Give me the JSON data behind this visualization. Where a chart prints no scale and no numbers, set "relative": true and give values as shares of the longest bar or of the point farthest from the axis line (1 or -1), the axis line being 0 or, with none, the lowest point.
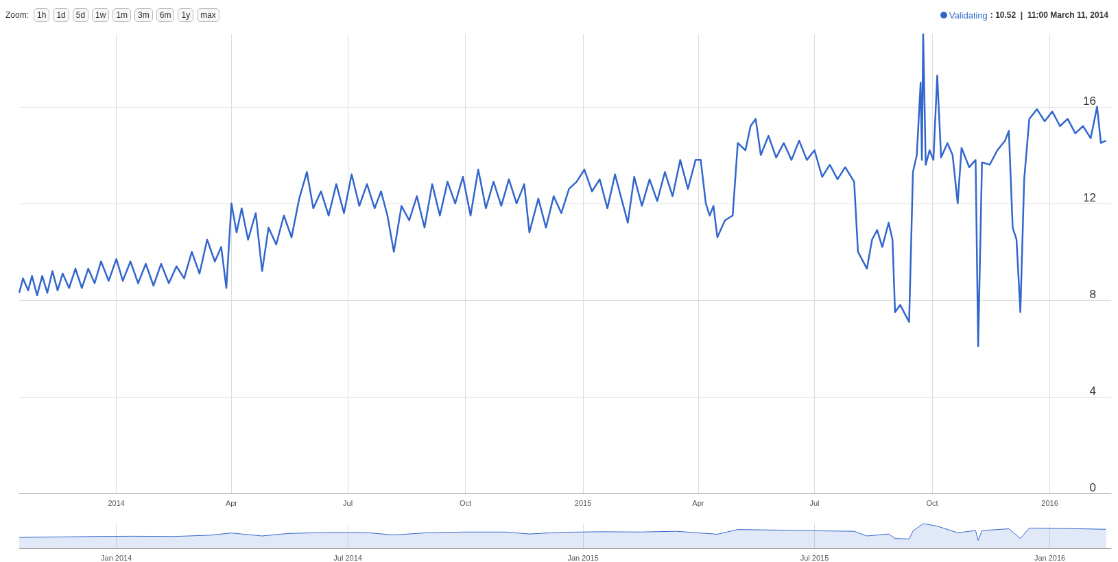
{
  "chart_data": [
    {
      "type": "line",
      "legend": "top right",
      "grid": true,
      "marker": "none",
      "line_style": "solid",
      "annotations": [
        "Zoom:",
        "1h",
        "1d",
        "5d",
        "1w",
        "1m",
        "3m",
        "6m",
        "1y",
        "max",
        ": 10.52  |  11:00 March 11, 2014"
      ],
      "xlim": [
        "2013-10-17",
        "2016-02-18"
      ],
      "xticks": [
        {
          "value": "2014-01-01",
          "label": "2014"
        },
        {
          "value": "2014-04-01",
          "label": "Apr"
        },
        {
          "value": "2014-07-01",
          "label": "Jul"
        },
        {
          "value": "2014-10-01",
          "label": "Oct"
        },
        {
          "value": "2015-01-01",
          "label": "2015"
        },
        {
          "value": "2015-04-01",
          "label": "Apr"
        },
        {
          "value": "2015-07-01",
          "label": "Jul"
        },
        {
          "value": "2015-10-01",
          "label": "Oct"
        },
        {
          "value": "2016-01-01",
          "label": "2016"
        }
      ],
      "ylim": [
        0,
        19
      ],
      "yticks": [
        0,
        4,
        8,
        12,
        16
      ],
      "x": [
        "2013-10-17",
        "2013-10-20",
        "2013-10-24",
        "2013-10-27",
        "2013-10-31",
        "2013-11-04",
        "2013-11-08",
        "2013-11-12",
        "2013-11-16",
        "2013-11-20",
        "2013-11-25",
        "2013-11-30",
        "2013-12-05",
        "2013-12-10",
        "2013-12-15",
        "2013-12-20",
        "2013-12-26",
        "2014-01-01",
        "2014-01-06",
        "2014-01-12",
        "2014-01-18",
        "2014-01-24",
        "2014-01-30",
        "2014-02-05",
        "2014-02-11",
        "2014-02-17",
        "2014-02-23",
        "2014-03-01",
        "2014-03-07",
        "2014-03-13",
        "2014-03-19",
        "2014-03-24",
        "2014-03-28",
        "2014-04-01",
        "2014-04-05",
        "2014-04-09",
        "2014-04-14",
        "2014-04-20",
        "2014-04-25",
        "2014-04-30",
        "2014-05-06",
        "2014-05-12",
        "2014-05-18",
        "2014-05-24",
        "2014-05-30",
        "2014-06-04",
        "2014-06-10",
        "2014-06-16",
        "2014-06-22",
        "2014-06-28",
        "2014-07-04",
        "2014-07-10",
        "2014-07-16",
        "2014-07-22",
        "2014-07-27",
        "2014-08-01",
        "2014-08-06",
        "2014-08-12",
        "2014-08-18",
        "2014-08-24",
        "2014-08-30",
        "2014-09-05",
        "2014-09-11",
        "2014-09-17",
        "2014-09-23",
        "2014-09-29",
        "2014-10-05",
        "2014-10-11",
        "2014-10-17",
        "2014-10-23",
        "2014-10-29",
        "2014-11-04",
        "2014-11-10",
        "2014-11-16",
        "2014-11-20",
        "2014-11-27",
        "2014-12-03",
        "2014-12-09",
        "2014-12-15",
        "2014-12-21",
        "2014-12-27",
        "2015-01-02",
        "2015-01-08",
        "2015-01-14",
        "2015-01-20",
        "2015-01-26",
        "2015-02-01",
        "2015-02-05",
        "2015-02-10",
        "2015-02-16",
        "2015-02-22",
        "2015-02-28",
        "2015-03-06",
        "2015-03-12",
        "2015-03-18",
        "2015-03-24",
        "2015-03-30",
        "2015-04-03",
        "2015-04-07",
        "2015-04-10",
        "2015-04-13",
        "2015-04-16",
        "2015-04-22",
        "2015-04-28",
        "2015-05-02",
        "2015-05-08",
        "2015-05-12",
        "2015-05-16",
        "2015-05-20",
        "2015-05-26",
        "2015-06-01",
        "2015-06-07",
        "2015-06-13",
        "2015-06-19",
        "2015-06-25",
        "2015-07-01",
        "2015-07-07",
        "2015-07-13",
        "2015-07-19",
        "2015-07-25",
        "2015-08-01",
        "2015-08-04",
        "2015-08-11",
        "2015-08-15",
        "2015-08-19",
        "2015-08-23",
        "2015-08-28",
        "2015-08-31",
        "2015-09-02",
        "2015-09-06",
        "2015-09-10",
        "2015-09-13",
        "2015-09-16",
        "2015-09-19",
        "2015-09-22",
        "2015-09-23",
        "2015-09-24",
        "2015-09-26",
        "2015-09-29",
        "2015-10-02",
        "2015-10-05",
        "2015-10-08",
        "2015-10-13",
        "2015-10-17",
        "2015-10-21",
        "2015-10-24",
        "2015-10-30",
        "2015-11-04",
        "2015-11-06",
        "2015-11-09",
        "2015-11-15",
        "2015-11-21",
        "2015-11-27",
        "2015-11-30",
        "2015-12-03",
        "2015-12-06",
        "2015-12-09",
        "2015-12-12",
        "2015-12-16",
        "2015-12-22",
        "2015-12-28",
        "2016-01-03",
        "2016-01-09",
        "2016-01-15",
        "2016-01-21",
        "2016-01-27",
        "2016-02-02",
        "2016-02-07",
        "2016-02-10",
        "2016-02-14"
      ],
      "series": [
        {
          "name": "Validating",
          "color": "#3366cc",
          "values": [
            8.3,
            8.9,
            8.4,
            9.0,
            8.2,
            9.0,
            8.3,
            9.2,
            8.4,
            9.1,
            8.5,
            9.3,
            8.5,
            9.3,
            8.7,
            9.6,
            8.8,
            9.7,
            8.8,
            9.6,
            8.7,
            9.5,
            8.6,
            9.5,
            8.7,
            9.4,
            8.9,
            10.0,
            9.1,
            10.5,
            9.6,
            10.2,
            8.5,
            12.0,
            10.8,
            11.8,
            10.5,
            11.6,
            9.2,
            11.0,
            10.3,
            11.5,
            10.6,
            12.2,
            13.3,
            11.8,
            12.5,
            11.5,
            12.8,
            11.6,
            13.2,
            11.9,
            12.8,
            11.8,
            12.5,
            11.5,
            10.0,
            11.9,
            11.3,
            12.3,
            11.0,
            12.8,
            11.5,
            12.9,
            12.0,
            13.1,
            11.5,
            13.4,
            11.8,
            12.9,
            11.9,
            13.0,
            12.0,
            12.8,
            10.8,
            12.2,
            11.0,
            12.3,
            11.6,
            12.6,
            12.9,
            13.4,
            12.5,
            13.0,
            11.8,
            13.2,
            12.0,
            11.2,
            13.1,
            11.9,
            13.0,
            12.1,
            13.3,
            12.3,
            13.8,
            12.6,
            13.8,
            13.8,
            12.0,
            11.5,
            11.9,
            10.6,
            11.3,
            11.5,
            14.5,
            14.2,
            15.2,
            15.5,
            14.0,
            14.8,
            13.9,
            14.5,
            13.8,
            14.6,
            13.8,
            14.2,
            13.1,
            13.6,
            13.0,
            13.5,
            12.9,
            10.0,
            9.3,
            10.5,
            10.9,
            10.2,
            11.2,
            10.5,
            7.5,
            7.8,
            7.4,
            7.1,
            13.3,
            14.0,
            17.0,
            13.8,
            19.0,
            13.6,
            14.2,
            13.8,
            17.3,
            13.9,
            14.5,
            14.0,
            12.0,
            14.3,
            13.5,
            13.8,
            6.1,
            13.7,
            13.6,
            14.2,
            14.6,
            15.0,
            11.0,
            10.5,
            7.5,
            13.0,
            15.5,
            15.9,
            15.4,
            15.8,
            15.2,
            15.5,
            14.9,
            15.2,
            14.7,
            16.0,
            14.5,
            14.6
          ]
        }
      ]
    },
    {
      "type": "area",
      "relative": true,
      "tick_labels": "x",
      "grid": "x",
      "legend": false,
      "xlim": [
        "2013-10-17",
        "2016-02-18"
      ],
      "xticks": [
        {
          "value": "2014-01-01",
          "label": "Jan 2014"
        },
        {
          "value": "2014-07-01",
          "label": "Jul 2014"
        },
        {
          "value": "2015-01-01",
          "label": "Jan 2015"
        },
        {
          "value": "2015-07-01",
          "label": "Jul 2015"
        },
        {
          "value": "2016-01-01",
          "label": "Jan 2016"
        }
      ],
      "x": [
        "2013-10-17",
        "2013-11-15",
        "2013-12-15",
        "2014-01-15",
        "2014-02-15",
        "2014-03-15",
        "2014-04-01",
        "2014-04-25",
        "2014-05-15",
        "2014-06-15",
        "2014-07-15",
        "2014-08-06",
        "2014-09-01",
        "2014-10-01",
        "2014-11-01",
        "2014-11-20",
        "2014-12-15",
        "2015-01-15",
        "2015-02-15",
        "2015-03-15",
        "2015-04-16",
        "2015-05-02",
        "2015-06-01",
        "2015-07-01",
        "2015-08-01",
        "2015-08-11",
        "2015-08-28",
        "2015-09-02",
        "2015-09-13",
        "2015-09-16",
        "2015-09-24",
        "2015-10-05",
        "2015-10-21",
        "2015-11-04",
        "2015-11-06",
        "2015-11-09",
        "2015-11-30",
        "2015-12-09",
        "2015-12-16",
        "2016-01-15",
        "2016-02-14"
      ],
      "series": [
        {
          "color": "#3366cc",
          "values": [
            0.44,
            0.46,
            0.48,
            0.49,
            0.48,
            0.53,
            0.62,
            0.5,
            0.6,
            0.64,
            0.64,
            0.54,
            0.63,
            0.66,
            0.66,
            0.58,
            0.65,
            0.67,
            0.66,
            0.69,
            0.57,
            0.76,
            0.74,
            0.71,
            0.69,
            0.5,
            0.58,
            0.4,
            0.38,
            0.7,
            1,
            0.9,
            0.63,
            0.72,
            0.32,
            0.72,
            0.79,
            0.4,
            0.82,
            0.8,
            0.77
          ]
        }
      ]
    }
  ]
}
